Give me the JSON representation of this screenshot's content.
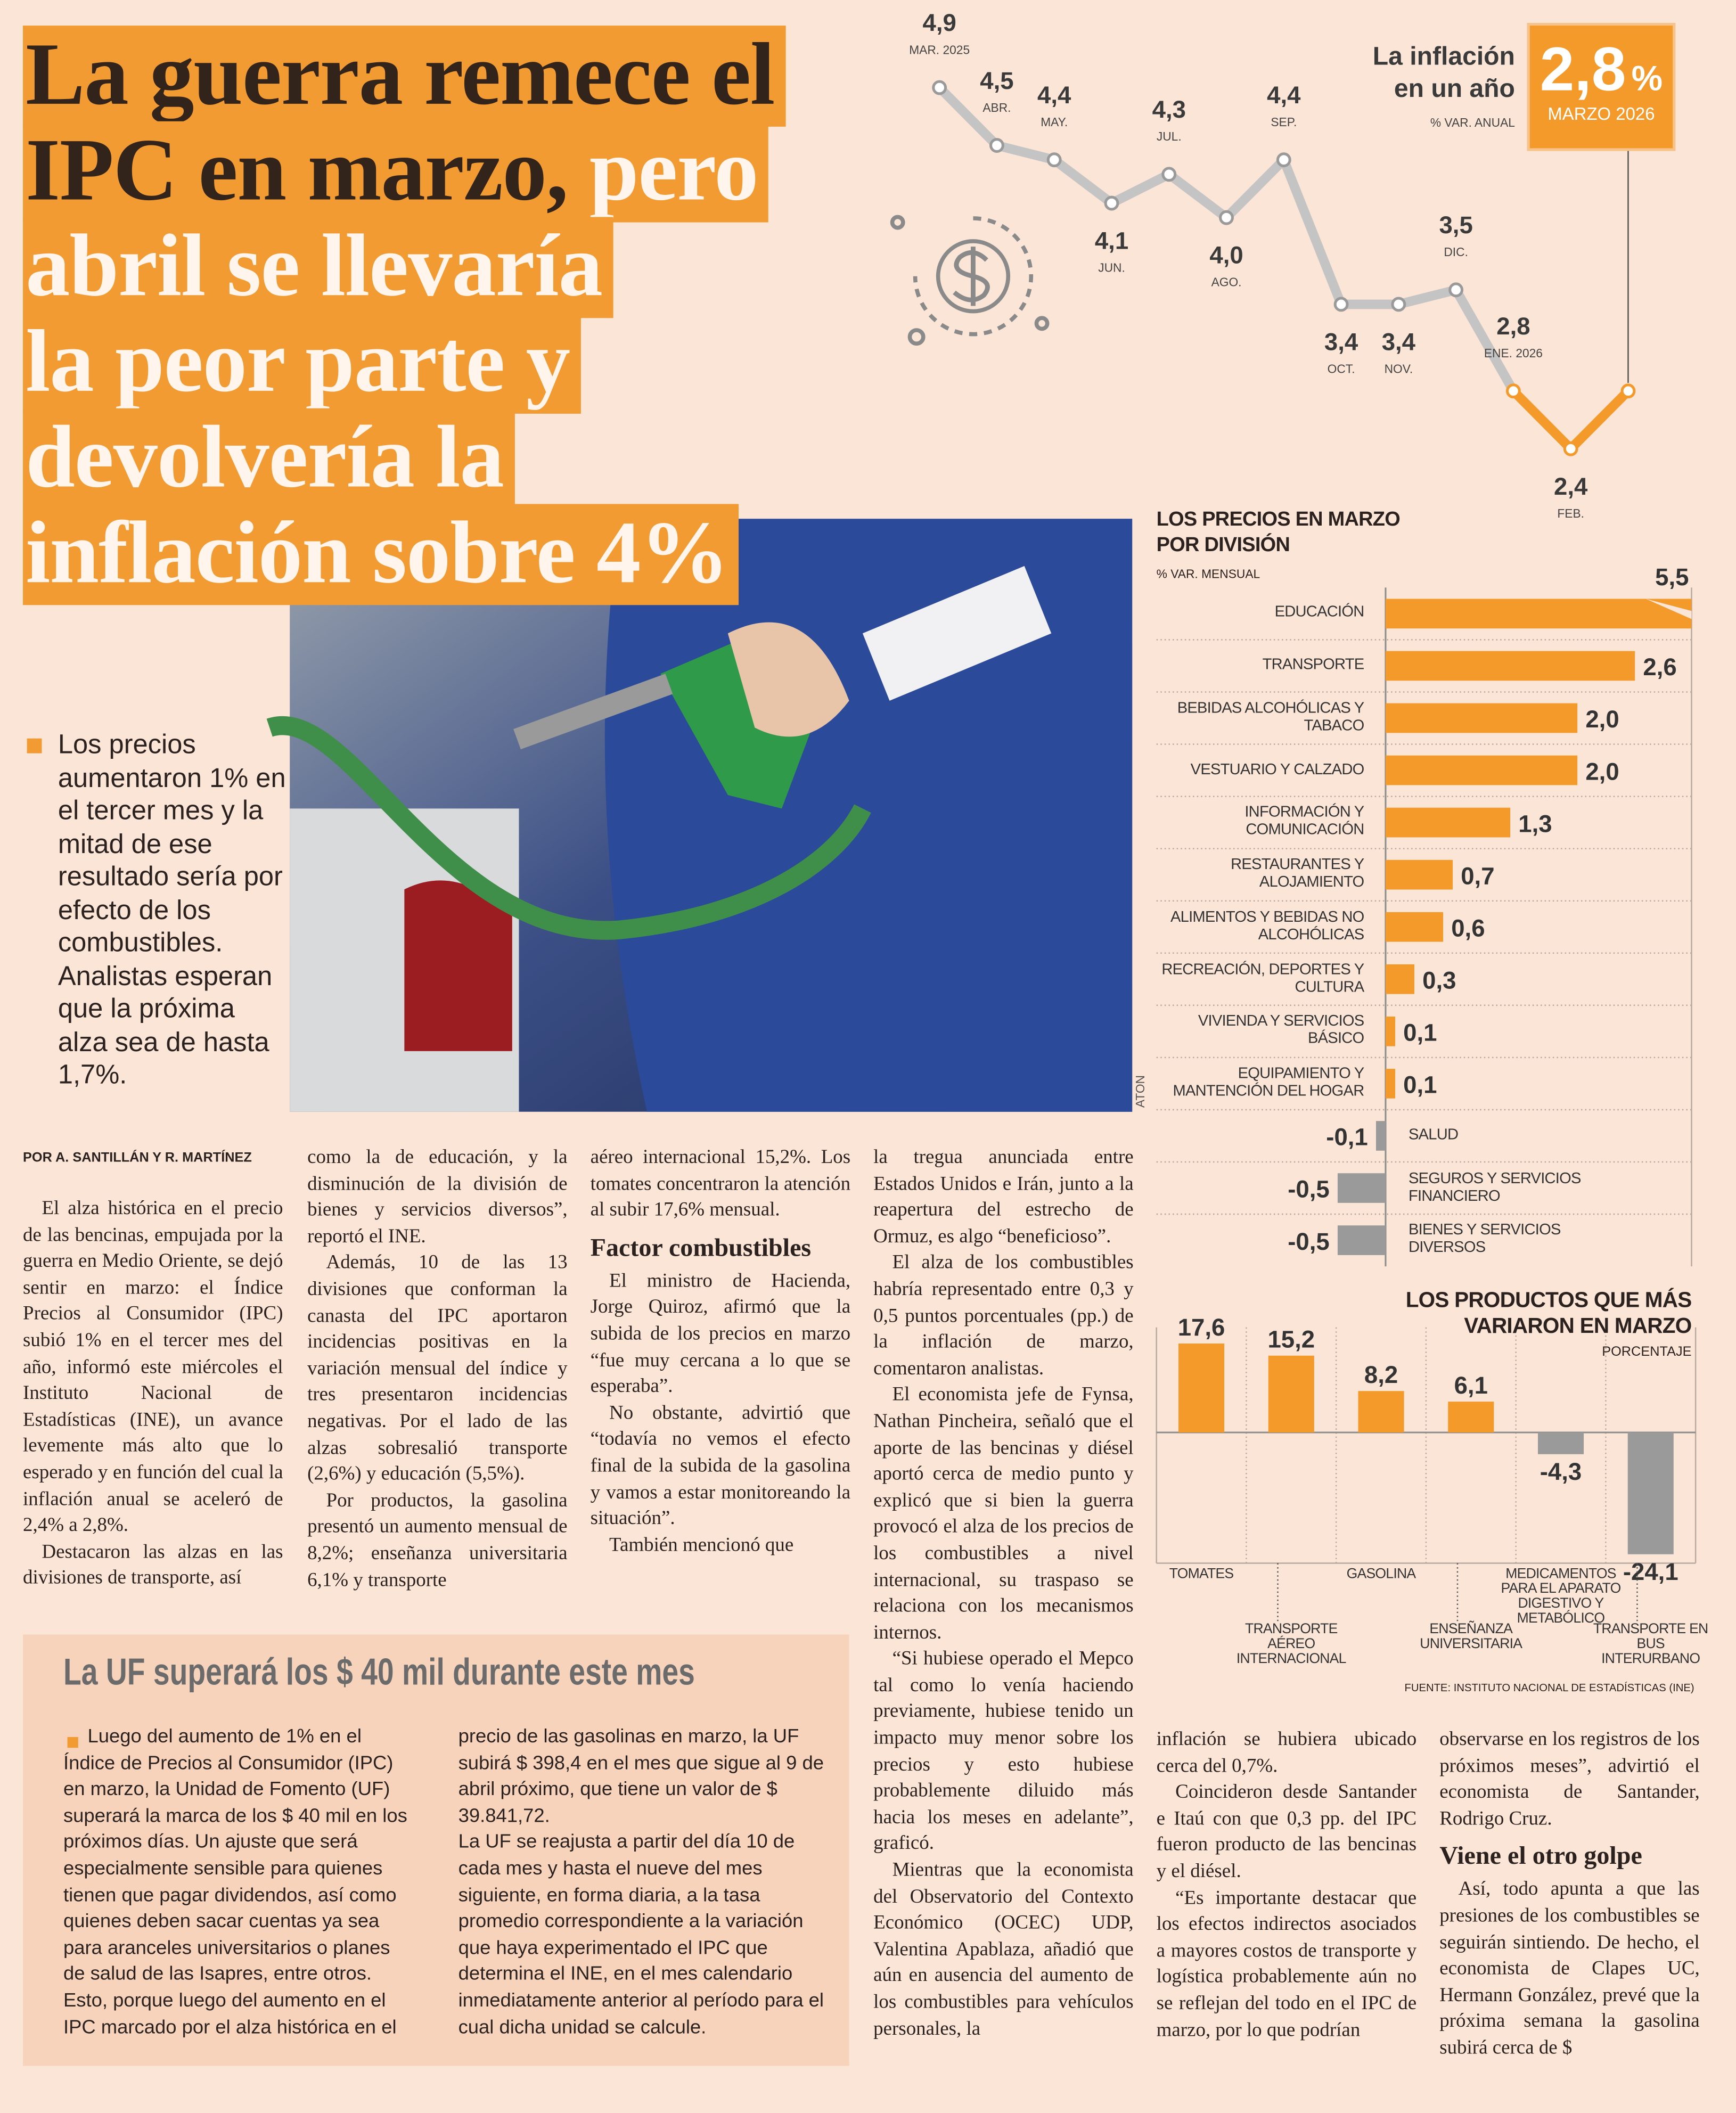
{
  "headline": {
    "dark": [
      "La guerra remece el",
      "IPC en marzo,"
    ],
    "light": [
      "pero",
      "abril se llevaría",
      "la peor parte y",
      "devolvería la",
      "inflación sobre 4%"
    ]
  },
  "summary": "Los precios aumentaron 1% en el tercer mes y la mitad de ese resultado sería por efecto de los combustibles. Analistas esperan que la próxima alza sea de hasta 1,7%.",
  "photo_credit": "ATON",
  "byline": "POR A. SANTILLÁN Y R. MARTÍNEZ",
  "body": {
    "columns": [
      [
        "El alza histórica en el precio de las bencinas, empujada por la guerra en Medio Oriente, se dejó sentir en marzo: el Índice Precios al Consumidor (IPC) subió 1% en el tercer mes del año, informó este miércoles el Instituto Nacional de Estadísticas (INE), un avance levemente más alto que lo esperado y en función del cual la inflación anual se aceleró de 2,4% a 2,8%.",
        "Destacaron las alzas en las divisiones de transporte, así"
      ],
      [
        "como la de educación, y la disminución de la división de bienes y servicios diversos”, reportó el INE.",
        "Además, 10 de las 13 divisiones que conforman la canasta del IPC aportaron incidencias positivas en la variación mensual del índice y tres presentaron incidencias negativas. Por el lado de las alzas sobresalió transporte (2,6%) y educación (5,5%).",
        "Por productos, la gasolina presentó un aumento mensual de 8,2%; enseñanza universitaria 6,1% y transporte"
      ],
      [
        "aéreo internacional 15,2%. Los tomates concentraron la atención al subir 17,6% mensual.",
        {
          "subhead": "Factor combustibles"
        },
        "El ministro de Hacienda, Jorge Quiroz, afirmó que la subida de los precios en marzo “fue muy cercana a lo que se esperaba”.",
        "No obstante, advirtió que “todavía no vemos el efecto final de la subida de la gasolina y vamos a estar monitoreando la situación”.",
        "También mencionó que"
      ],
      [
        "la tregua anunciada entre Estados Unidos e Irán, junto a la reapertura del estrecho de Ormuz, es algo “beneficioso”.",
        "El alza de los combustibles habría representado entre 0,3 y 0,5 puntos porcentuales (pp.) de la inflación de marzo, comentaron analistas.",
        "El economista jefe de Fynsa, Nathan Pincheira, señaló que el aporte de las bencinas y diésel aportó cerca de medio punto y explicó que si bien la guerra provocó el alza de los precios de los combustibles a nivel internacional, su traspaso se relaciona con los mecanismos internos.",
        "“Si hubiese operado el Mepco tal como lo venía haciendo previamente, hubiese tenido un impacto muy menor sobre los precios y esto hubiese probablemente diluido más hacia los meses en adelante”, graficó.",
        "Mientras que la economista del Observatorio del Contexto Económico (OCEC) UDP, Valentina Apablaza, añadió que aún en ausencia del aumento de los combustibles para vehículos personales, la"
      ],
      [
        "inflación se hubiera ubicado cerca del 0,7%.",
        "Coincideron desde Santander e Itaú con que 0,3 pp. del IPC fueron producto de las bencinas y el diésel.",
        "“Es importante destacar que los efectos indirectos asociados a mayores costos de transporte y logística probablemente aún no se reflejan del todo en el IPC de marzo, por lo que podrían"
      ],
      [
        "observarse en los registros de los próximos meses”, advirtió el economista de Santander, Rodrigo Cruz.",
        {
          "subhead": "Viene el otro golpe"
        },
        "Así, todo apunta a que las presiones de los combustibles se seguirán sintiendo. De hecho, el economista de Clapes UC, Hermann González, prevé que la próxima semana la gasolina subirá cerca de $"
      ]
    ]
  },
  "box": {
    "title": "La UF superará los $ 40 mil durante este mes",
    "columns": [
      [
        "Luego del aumento de 1% en el Índice de Precios al Consumidor (IPC) en marzo, la Unidad de Fomento (UF) superará la marca de los $ 40 mil en los próximos días. Un ajuste que será especialmente sensible para quienes tienen que pagar dividendos, así como quienes deben sacar cuentas ya sea para aranceles universitarios o planes de salud de las Isapres, entre otros. Esto, porque luego del aumento en el IPC marcado por el alza histórica en el"
      ],
      [
        "precio de las gasolinas en marzo, la UF subirá $ 398,4 en el mes que sigue al 9 de abril próximo, que tiene un valor de $ 39.841,72.",
        "La UF se reajusta a partir del día 10 de cada mes y hasta el nueve del mes siguiente, en forma diaria, a la tasa promedio correspondiente a la variación que haya experimentado el IPC que determina el INE, en el mes calendario inmediatamente anterior al período para el cual dicha unidad se calcule."
      ]
    ]
  },
  "chart_data": [
    {
      "type": "line",
      "title": "La inflación en un año",
      "subtitle": "% VAR. ANUAL",
      "categories": [
        "MAR. 2025",
        "ABR.",
        "MAY.",
        "JUN.",
        "JUL.",
        "AGO.",
        "SEP.",
        "OCT.",
        "NOV.",
        "DIC.",
        "ENE. 2026",
        "FEB.",
        null
      ],
      "values": [
        4.9,
        4.5,
        4.4,
        4.1,
        4.3,
        4.0,
        4.4,
        3.4,
        3.4,
        3.5,
        2.8,
        2.4,
        2.8
      ],
      "value_labels": [
        "4,9",
        "4,5",
        "4,4",
        "4,1",
        "4,3",
        "4,0",
        "4,4",
        "3,4",
        "3,4",
        "3,5",
        "2,8",
        "2,4",
        null
      ],
      "point_colors": [
        "#c4c4c4",
        "#c4c4c4",
        "#c4c4c4",
        "#c4c4c4",
        "#c4c4c4",
        "#c4c4c4",
        "#c4c4c4",
        "#c4c4c4",
        "#c4c4c4",
        "#c4c4c4",
        "#f39a2b",
        "#f39a2b",
        "#f39a2b"
      ],
      "callout": {
        "value": "2,8",
        "unit": "%",
        "label": "MARZO 2026",
        "color": "#f39a2b"
      }
    },
    {
      "type": "hbar",
      "title": "LOS PRECIOS EN MARZO POR DIVISIÓN",
      "subtitle": "% VAR. MENSUAL",
      "categories": [
        "EDUCACIÓN",
        "TRANSPORTE",
        "BEBIDAS ALCOHÓLICAS Y TABACO",
        "VESTUARIO Y CALZADO",
        "INFORMACIÓN Y COMUNICACIÓN",
        "RESTAURANTES Y ALOJAMIENTO",
        "ALIMENTOS Y BEBIDAS NO ALCOHÓLICAS",
        "RECREACIÓN, DEPORTES Y CULTURA",
        "VIVIENDA Y SERVICIOS BÁSICO",
        "EQUIPAMIENTO Y MANTENCIÓN DEL HOGAR",
        "SALUD",
        "SEGUROS Y SERVICIOS FINANCIERO",
        "BIENES Y SERVICIOS DIVERSOS"
      ],
      "values": [
        5.5,
        2.6,
        2.0,
        2.0,
        1.3,
        0.7,
        0.6,
        0.3,
        0.1,
        0.1,
        -0.1,
        -0.5,
        -0.5
      ],
      "value_labels": [
        "5,5",
        "2,6",
        "2,0",
        "2,0",
        "1,3",
        "0,7",
        "0,6",
        "0,3",
        "0,1",
        "0,1",
        "-0,1",
        "-0,5",
        "-0,5"
      ],
      "color": "#f39a2b",
      "negative_color": "#9a9a9a"
    },
    {
      "type": "bar",
      "title": "LOS PRODUCTOS QUE MÁS VARIARON EN MARZO",
      "subtitle": "PORCENTAJE",
      "categories": [
        "TOMATES",
        "TRANSPORTE AÉREO INTERNACIONAL",
        "GASOLINA",
        "ENSEÑANZA UNIVERSITARIA",
        "MEDICAMENTOS PARA EL APARATO DIGESTIVO Y METABÓLICO",
        "TRANSPORTE EN BUS INTERURBANO"
      ],
      "values": [
        17.6,
        15.2,
        8.2,
        6.1,
        -4.3,
        -24.1
      ],
      "value_labels": [
        "17,6",
        "15,2",
        "8,2",
        "6,1",
        "-4,3",
        "-24,1"
      ],
      "color": "#f39a2b",
      "negative_color": "#9a9a9a",
      "source": "FUENTE: INSTITUTO NACIONAL DE ESTADÍSTICAS (INE)"
    }
  ]
}
